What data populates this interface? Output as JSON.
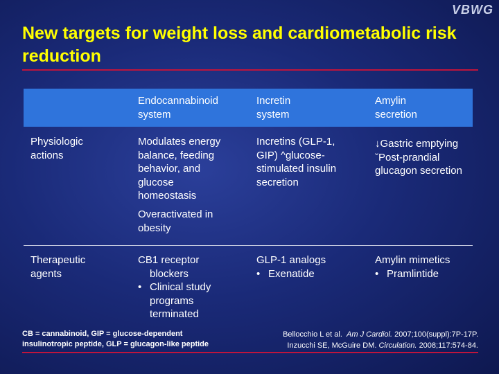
{
  "logo": "VBWG",
  "title": "New targets for weight loss and cardiometabolic risk reduction",
  "table": {
    "headers": [
      "Endocannabinoid system",
      "Incretin system",
      "Amylin secretion"
    ],
    "header_lines": [
      [
        "Endocannabinoid",
        "system"
      ],
      [
        "Incretin",
        "system"
      ],
      [
        "Amylin",
        "secretion"
      ]
    ],
    "rows": [
      {
        "label": [
          "Physiologic",
          "actions"
        ],
        "endocannabinoid": [
          "Modulates energy",
          "balance, feeding",
          "behavior, and",
          "glucose",
          "homeostasis"
        ],
        "endocannabinoid_extra": [
          "Overactivated in",
          "obesity"
        ],
        "incretin": [
          "Incretins (GLP-1,",
          "GIP) ^glucose-",
          "stimulated insulin",
          "secretion"
        ],
        "amylin": [
          "↓Gastric emptying",
          "ˇPost-prandial",
          "glucagon secretion"
        ]
      },
      {
        "label": [
          "Therapeutic",
          "agents"
        ],
        "endocannabinoid_lead": "CB1 receptor",
        "endocannabinoid_lead_2": "blockers",
        "endocannabinoid_bullet": [
          "Clinical study",
          "programs",
          "terminated"
        ],
        "incretin_lead": "GLP-1 analogs",
        "incretin_bullet": "Exenatide",
        "amylin_lead": "Amylin mimetics",
        "amylin_bullet": "Pramlintide"
      }
    ]
  },
  "footnote": [
    "CB = cannabinoid, GIP = glucose-dependent",
    "insulinotropic peptide, GLP = glucagon-like peptide"
  ],
  "references": [
    {
      "authors": "Bellocchio L et al.",
      "journal": "Am J Cardiol.",
      "citation": "2007;100(suppl):7P-17P."
    },
    {
      "authors": "Inzucchi SE, McGuire DM.",
      "journal": "Circulation.",
      "citation": "2008;117:574-84."
    }
  ]
}
